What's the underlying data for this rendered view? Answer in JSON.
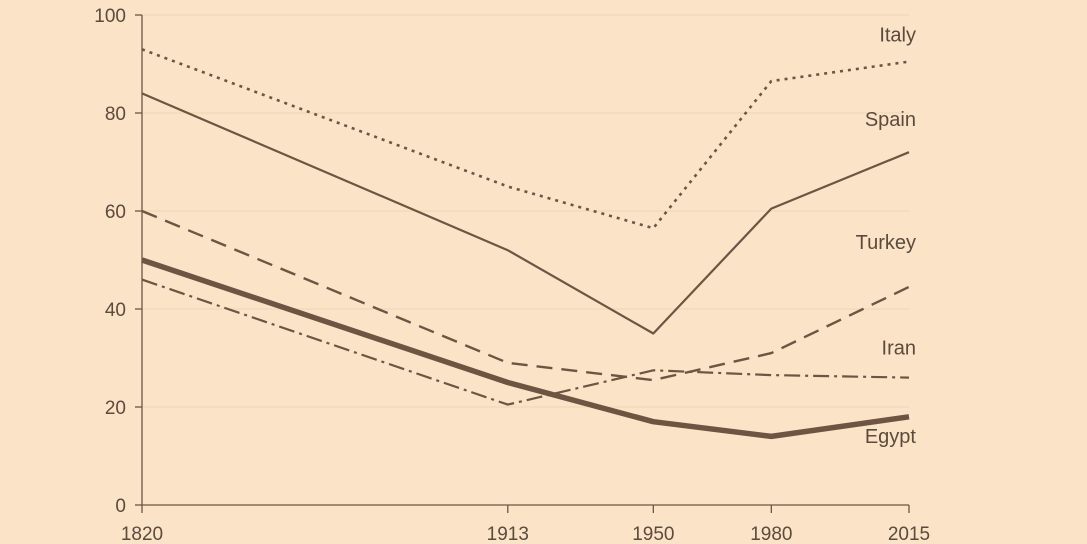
{
  "chart_data": {
    "type": "line",
    "title": "",
    "xlabel": "",
    "ylabel": "",
    "x": [
      1820,
      1913,
      1950,
      1980,
      2015
    ],
    "x_tick_labels": [
      "1820",
      "1913",
      "1950",
      "1980",
      "2015"
    ],
    "y_ticks": [
      0,
      20,
      40,
      60,
      80,
      100
    ],
    "y_tick_labels": [
      "0",
      "20",
      "40",
      "60",
      "80",
      "100"
    ],
    "ylim": [
      0,
      100
    ],
    "grid": "horizontal, faint",
    "legend": "series labels placed at right end of each line",
    "colors": {
      "background": "#fbe3c7",
      "line": "#6e5442",
      "text": "#5c4a3d",
      "grid": "#f2d6b6"
    },
    "series": [
      {
        "name": "Italy",
        "style": "dotted",
        "values": [
          93,
          65,
          56.5,
          86.5,
          90.5
        ]
      },
      {
        "name": "Spain",
        "style": "solid",
        "values": [
          84,
          52,
          35,
          60.5,
          72
        ]
      },
      {
        "name": "Turkey",
        "style": "dashed",
        "values": [
          60,
          29,
          25.5,
          31,
          44.5
        ]
      },
      {
        "name": "Iran",
        "style": "dashdot",
        "values": [
          46,
          20.5,
          27.5,
          26.5,
          26
        ]
      },
      {
        "name": "Egypt",
        "style": "thick",
        "values": [
          50,
          25,
          17,
          14,
          18
        ]
      }
    ]
  }
}
